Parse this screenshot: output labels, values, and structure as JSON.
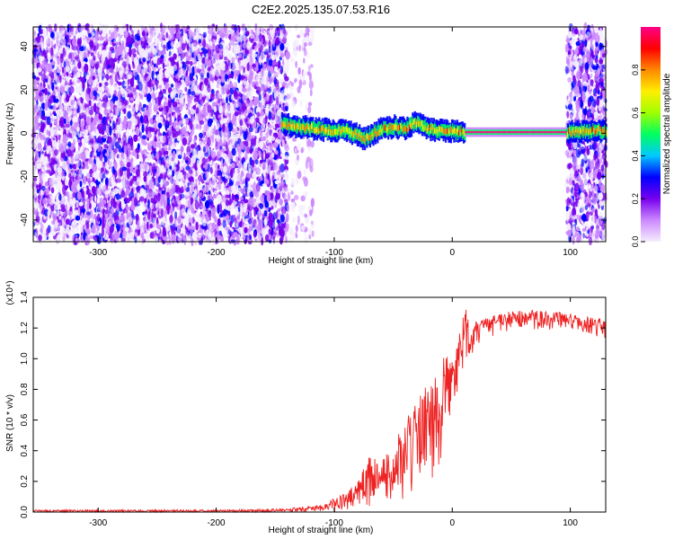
{
  "figure": {
    "title": "C2E2.2025.135.07.53.R16"
  },
  "chart_data": [
    {
      "type": "heatmap",
      "title": "C2E2.2025.135.07.53.R16",
      "xlabel": "Height of straight line (km)",
      "ylabel": "Frequency (Hz)",
      "xlim": [
        -355,
        130
      ],
      "ylim": [
        -50,
        49
      ],
      "x_ticks": [
        -300,
        -200,
        -100,
        0,
        100
      ],
      "y_ticks": [
        -40,
        -20,
        0,
        20,
        40
      ],
      "x_tick_labels": [
        "-300",
        "-200",
        "-100",
        "0",
        "100"
      ],
      "y_tick_labels": [
        "-40",
        "-20",
        "0",
        "20",
        "40"
      ],
      "noise_region_x": [
        -355,
        -140
      ],
      "noise_tail_x": [
        -140,
        -118
      ],
      "right_noise_region_x": [
        97,
        130
      ],
      "signal_trace": {
        "x": [
          -145,
          -130,
          -115,
          -100,
          -90,
          -80,
          -75,
          -70,
          -60,
          -50,
          -40,
          -35,
          -30,
          -25,
          -20,
          -10,
          0,
          10,
          20,
          40,
          60,
          80,
          97,
          110,
          130
        ],
        "y": [
          4,
          3,
          2,
          1,
          1,
          -1,
          -3,
          -1,
          2,
          3,
          2,
          4,
          5,
          3,
          2,
          1,
          1,
          0.5,
          0.5,
          0.5,
          0.5,
          0.5,
          0.5,
          1,
          1
        ]
      },
      "colorbar": {
        "label": "Normalized spectral amplitude",
        "range": [
          0.0,
          1.0
        ],
        "ticks": [
          0.0,
          0.2,
          0.4,
          0.6,
          0.8
        ],
        "tick_labels": [
          "0.0",
          "0.2",
          "0.4",
          "0.6",
          "0.8"
        ],
        "colors": [
          "#f4eefc",
          "#cc88ff",
          "#7700ee",
          "#0000ff",
          "#00c8ff",
          "#00ff60",
          "#a0ff00",
          "#ffee00",
          "#ff8800",
          "#ff0000",
          "#ff0088"
        ]
      }
    },
    {
      "type": "line",
      "xlabel": "Height of straight line (km)",
      "ylabel": "SNR (10 * v/v)",
      "y_scale_label": "(x10⁴)",
      "xlim": [
        -355,
        130
      ],
      "ylim": [
        0.0,
        1.4
      ],
      "x_ticks": [
        -300,
        -200,
        -100,
        0,
        100
      ],
      "y_ticks": [
        0.0,
        0.2,
        0.4,
        0.6,
        0.8,
        1.0,
        1.2,
        1.4
      ],
      "x_tick_labels": [
        "-300",
        "-200",
        "-100",
        "0",
        "100"
      ],
      "y_tick_labels": [
        "0.0",
        "0.2",
        "0.4",
        "0.6",
        "0.8",
        "1.0",
        "1.2",
        "1.4"
      ],
      "line_color": "#ee2222",
      "envelope": {
        "x": [
          -355,
          -200,
          -150,
          -130,
          -110,
          -100,
          -90,
          -80,
          -70,
          -60,
          -50,
          -40,
          -30,
          -20,
          -10,
          -5,
          0,
          5,
          10,
          15,
          20,
          30,
          40,
          60,
          80,
          100,
          110,
          120,
          130
        ],
        "low": [
          0.0,
          0.0,
          0.0,
          0.0,
          0.0,
          0.0,
          0.0,
          0.01,
          0.02,
          0.04,
          0.06,
          0.09,
          0.12,
          0.16,
          0.3,
          0.45,
          0.6,
          0.75,
          0.9,
          1.0,
          1.08,
          1.13,
          1.16,
          1.18,
          1.18,
          1.19,
          1.17,
          1.15,
          1.13
        ],
        "high": [
          0.015,
          0.015,
          0.02,
          0.03,
          0.05,
          0.09,
          0.13,
          0.2,
          0.38,
          0.35,
          0.45,
          0.58,
          0.78,
          0.85,
          0.98,
          1.05,
          1.0,
          1.12,
          1.38,
          1.22,
          1.24,
          1.28,
          1.3,
          1.32,
          1.31,
          1.3,
          1.27,
          1.28,
          1.25
        ]
      }
    }
  ]
}
